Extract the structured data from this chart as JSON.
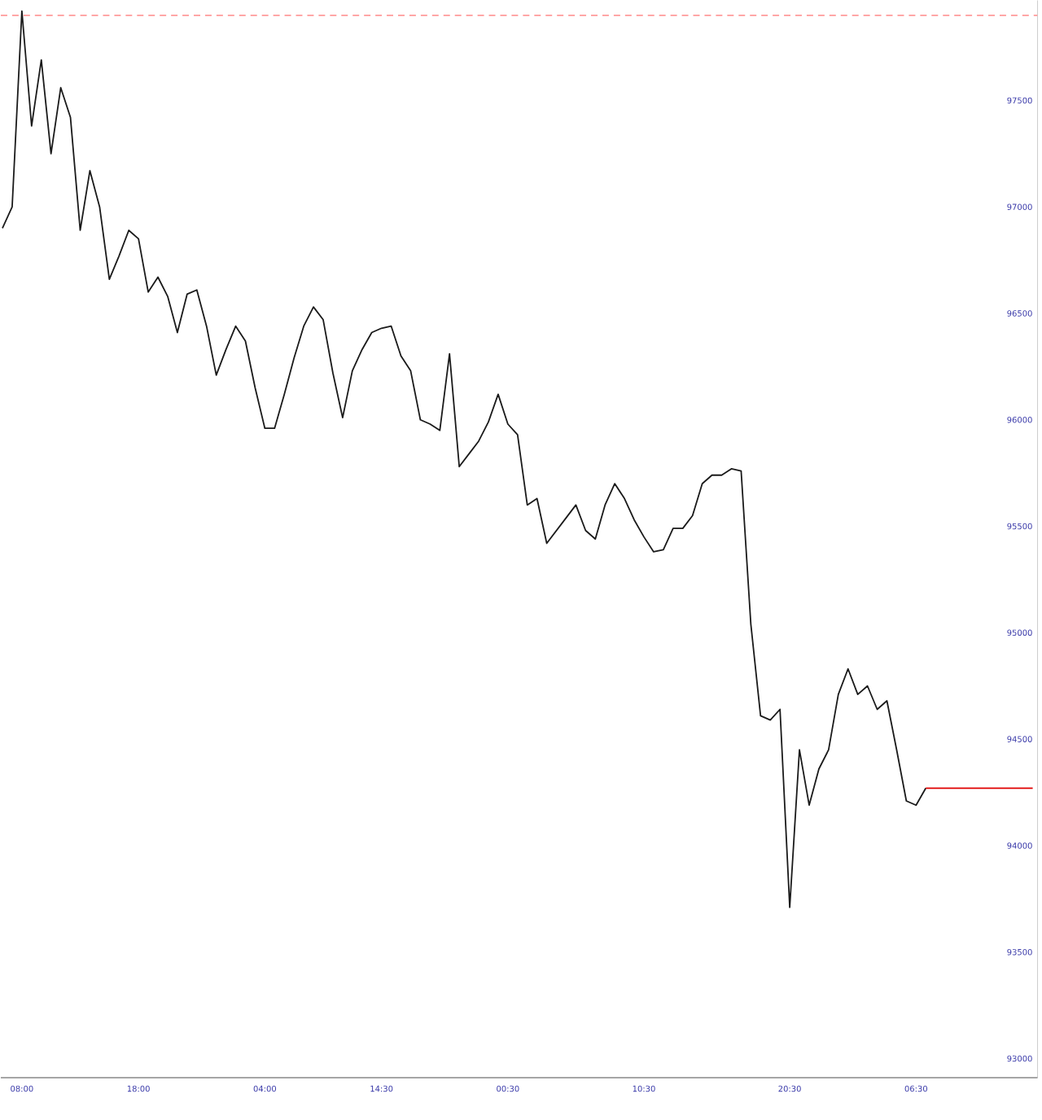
{
  "chart_data": {
    "type": "line",
    "ylim": [
      92910,
      97970
    ],
    "yticks": [
      93000,
      93500,
      94000,
      94500,
      95000,
      95500,
      96000,
      96500,
      97000,
      97500
    ],
    "categories": [
      null,
      null,
      "08:00",
      null,
      null,
      null,
      null,
      null,
      null,
      null,
      null,
      null,
      null,
      null,
      "18:00",
      null,
      null,
      null,
      null,
      null,
      null,
      null,
      null,
      null,
      null,
      null,
      null,
      "04:00",
      null,
      null,
      null,
      null,
      null,
      null,
      null,
      null,
      null,
      null,
      null,
      "14:30",
      null,
      null,
      null,
      null,
      null,
      null,
      null,
      null,
      null,
      null,
      null,
      null,
      "00:30",
      null,
      null,
      null,
      null,
      null,
      null,
      null,
      null,
      null,
      null,
      null,
      null,
      null,
      "10:30",
      null,
      null,
      null,
      null,
      null,
      null,
      null,
      null,
      null,
      null,
      null,
      null,
      null,
      null,
      "20:30",
      null,
      null,
      null,
      null,
      null,
      null,
      null,
      null,
      null,
      null,
      null,
      null,
      "06:30",
      null,
      null,
      null,
      null,
      null,
      null,
      null,
      null,
      null,
      null,
      null,
      null
    ],
    "series": [
      {
        "color": "#1a1a1a",
        "values": [
          96900,
          97000,
          97920,
          97380,
          97690,
          97250,
          97560,
          97420,
          96890,
          97170,
          97000,
          96660,
          96770,
          96890,
          96850,
          96600,
          96670,
          96580,
          96410,
          96590,
          96610,
          96440,
          96210,
          96330,
          96440,
          96370,
          96150,
          95960,
          95960,
          96120,
          96290,
          96440,
          96530,
          96470,
          96220,
          96010,
          96230,
          96330,
          96410,
          96430,
          96440,
          96300,
          96230,
          96000,
          95980,
          95950,
          96310,
          95780,
          95840,
          95900,
          95990,
          96120,
          95980,
          95930,
          95600,
          95630,
          95420,
          95480,
          95540,
          95600,
          95480,
          95440,
          95600,
          95700,
          95630,
          95530,
          95450,
          95380,
          95390,
          95490,
          95490,
          95550,
          95700,
          95740,
          95740,
          95770,
          95760,
          95040,
          94610,
          94590,
          94640,
          93710,
          94450,
          94190,
          94360,
          94450,
          94710,
          94830,
          94710,
          94750,
          94640,
          94680,
          94450,
          94210,
          94190,
          94270,
          null,
          null,
          null,
          null,
          null,
          null,
          null,
          null,
          null,
          null,
          null
        ]
      },
      {
        "color": "#e00000",
        "values": [
          null,
          null,
          null,
          null,
          null,
          null,
          null,
          null,
          null,
          null,
          null,
          null,
          null,
          null,
          null,
          null,
          null,
          null,
          null,
          null,
          null,
          null,
          null,
          null,
          null,
          null,
          null,
          null,
          null,
          null,
          null,
          null,
          null,
          null,
          null,
          null,
          null,
          null,
          null,
          null,
          null,
          null,
          null,
          null,
          null,
          null,
          null,
          null,
          null,
          null,
          null,
          null,
          null,
          null,
          null,
          null,
          null,
          null,
          null,
          null,
          null,
          null,
          null,
          null,
          null,
          null,
          null,
          null,
          null,
          null,
          null,
          null,
          null,
          null,
          null,
          null,
          null,
          null,
          null,
          null,
          null,
          null,
          null,
          null,
          null,
          null,
          null,
          null,
          null,
          null,
          null,
          null,
          null,
          null,
          null,
          94270,
          94270,
          94270,
          94270,
          94270,
          94270,
          94270,
          94270,
          94270,
          94270,
          94270,
          94270
        ]
      }
    ],
    "ref_lines": [
      {
        "axis": "y",
        "value": 97900,
        "color": "#ff9a9a",
        "line_style": "dashed"
      }
    ]
  }
}
